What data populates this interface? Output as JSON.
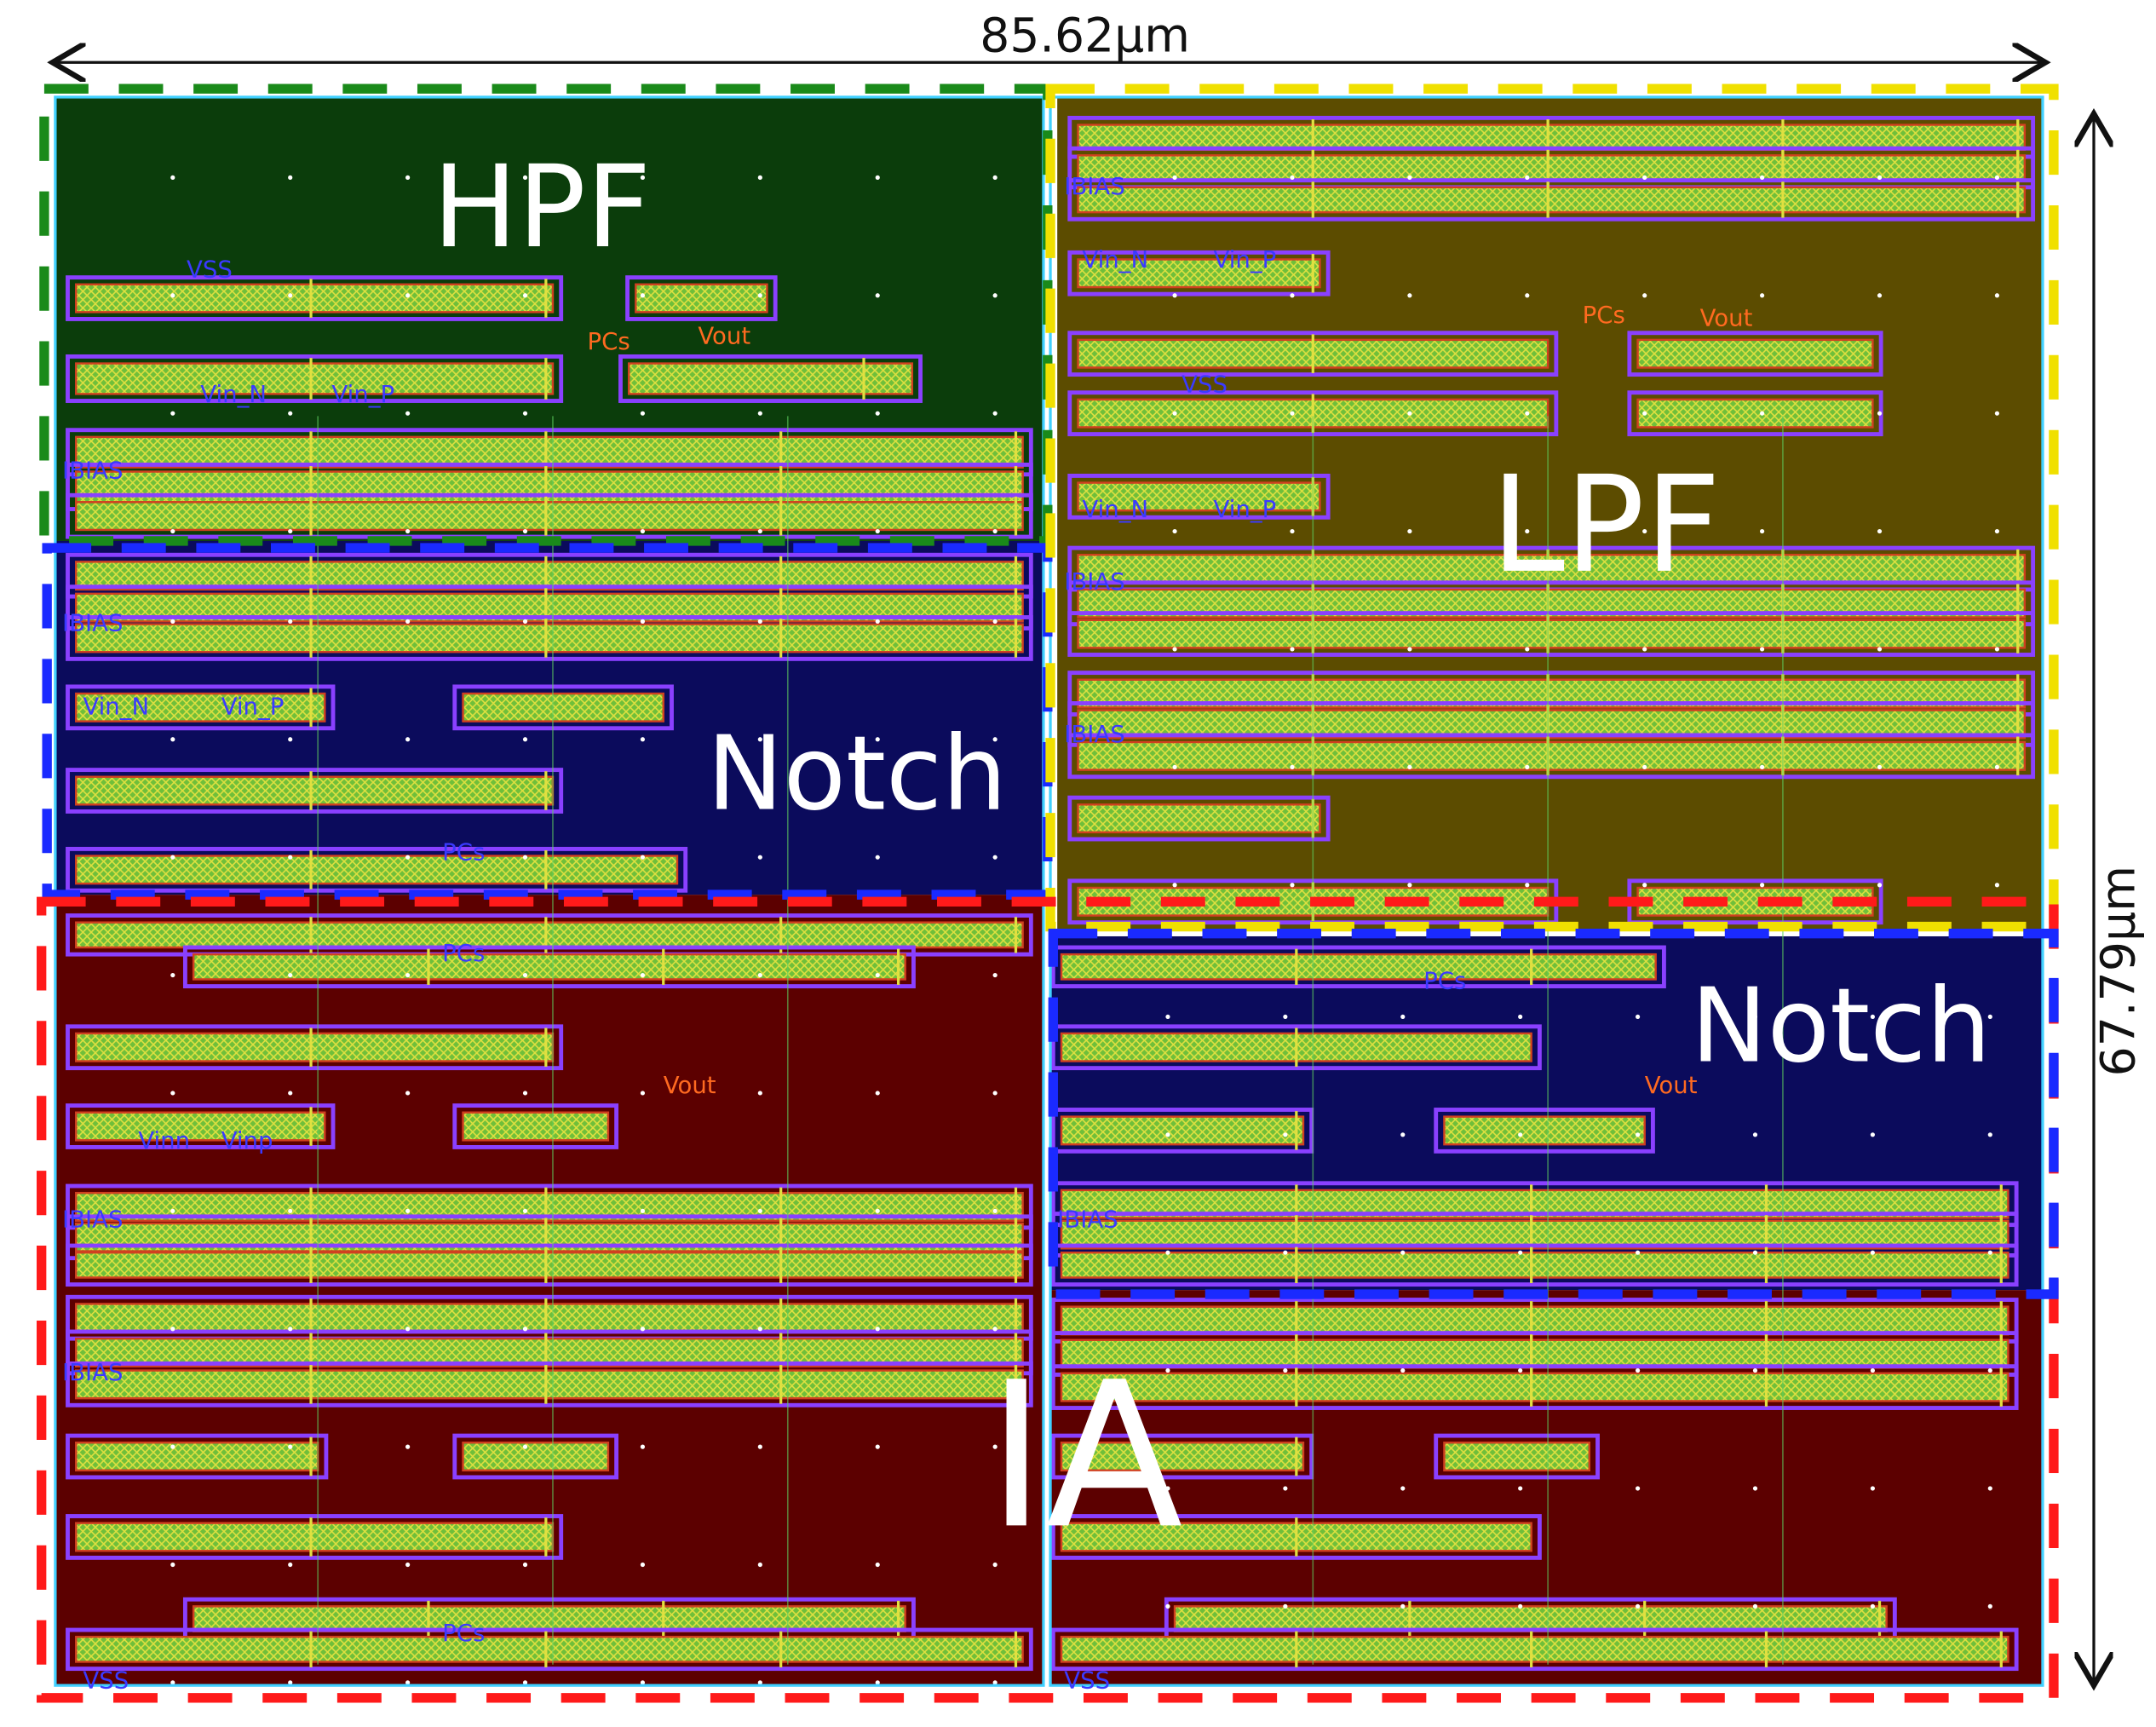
{
  "dimensions": {
    "width": "85.62μm",
    "height": "67.79μm"
  },
  "blocks": [
    "HPF",
    "Notch",
    "LPF",
    "Notch",
    "IA"
  ],
  "net_labels": [
    "VSS",
    "Vin_N",
    "Vin_P",
    "IBIAS",
    "Vout",
    "PCs",
    "IBIAS",
    "Vin_N",
    "Vin_P",
    "PCs",
    "IBIAS",
    "Vin_N",
    "Vin_P",
    "PCs",
    "Vout",
    "VSS",
    "Vin_N",
    "Vin_P",
    "IBIAS",
    "IBIAS",
    "PCs",
    "Vout",
    "Vinn",
    "Vinp",
    "IBIAS",
    "IBIAS",
    "PCs",
    "VSS",
    "IBIAS",
    "Vout",
    "PCs",
    "VSS"
  ]
}
